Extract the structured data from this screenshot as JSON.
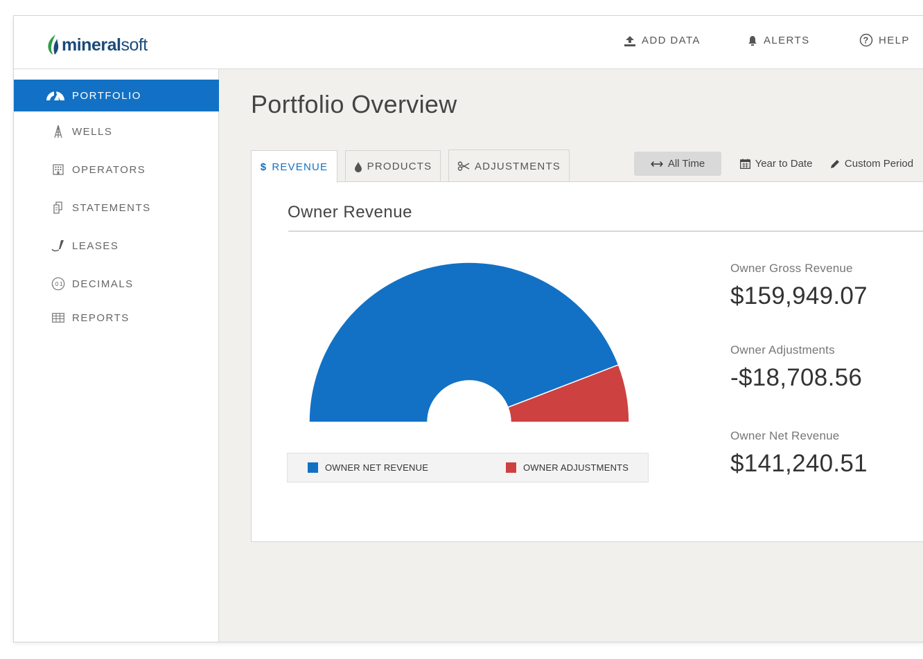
{
  "brand": {
    "logo_part1": "mineral",
    "logo_part2": "soft",
    "primary_color": "#1271c4",
    "logo_green": "#2e9e44"
  },
  "header": {
    "nav": [
      {
        "label": "ADD DATA",
        "icon": "upload-icon"
      },
      {
        "label": "ALERTS",
        "icon": "bell-icon"
      },
      {
        "label": "HELP",
        "icon": "help-circle-icon"
      }
    ]
  },
  "sidebar": {
    "items": [
      {
        "label": "PORTFOLIO",
        "icon": "dashboard-gauge-icon",
        "active": true
      },
      {
        "label": "WELLS",
        "icon": "oil-derrick-icon",
        "active": false
      },
      {
        "label": "OPERATORS",
        "icon": "building-icon",
        "active": false
      },
      {
        "label": "STATEMENTS",
        "icon": "documents-icon",
        "active": false
      },
      {
        "label": "LEASES",
        "icon": "pen-signature-icon",
        "active": false
      },
      {
        "label": "DECIMALS",
        "icon": "decimal-badge-icon",
        "badge_text": ".01",
        "active": false
      },
      {
        "label": "REPORTS",
        "icon": "table-grid-icon",
        "active": false
      }
    ]
  },
  "main": {
    "title": "Portfolio Overview",
    "tabs": [
      {
        "label": "REVENUE",
        "prefix": "$",
        "icon": "dollar-icon",
        "active": true
      },
      {
        "label": "PRODUCTS",
        "icon": "drop-icon",
        "active": false
      },
      {
        "label": "ADJUSTMENTS",
        "icon": "scissors-icon",
        "active": false
      }
    ],
    "periods": [
      {
        "label": "All Time",
        "icon": "horizontal-arrows-icon",
        "selected": true
      },
      {
        "label": "Year to Date",
        "icon": "calendar-icon",
        "selected": false
      },
      {
        "label": "Custom Period",
        "icon": "pencil-icon",
        "selected": false
      }
    ],
    "panel_title": "Owner Revenue",
    "stats": [
      {
        "label": "Owner Gross Revenue",
        "value": "$159,949.07"
      },
      {
        "label": "Owner Adjustments",
        "value": "-$18,708.56"
      },
      {
        "label": "Owner Net Revenue",
        "value": "$141,240.51"
      }
    ]
  },
  "chart_data": {
    "type": "pie",
    "style": "half-donut",
    "series": [
      {
        "name": "OWNER NET REVENUE",
        "value": 141240.51,
        "color": "#1271c4"
      },
      {
        "name": "OWNER ADJUSTMENTS",
        "value": 18708.56,
        "color": "#cd4140"
      }
    ],
    "legend_position": "bottom"
  }
}
